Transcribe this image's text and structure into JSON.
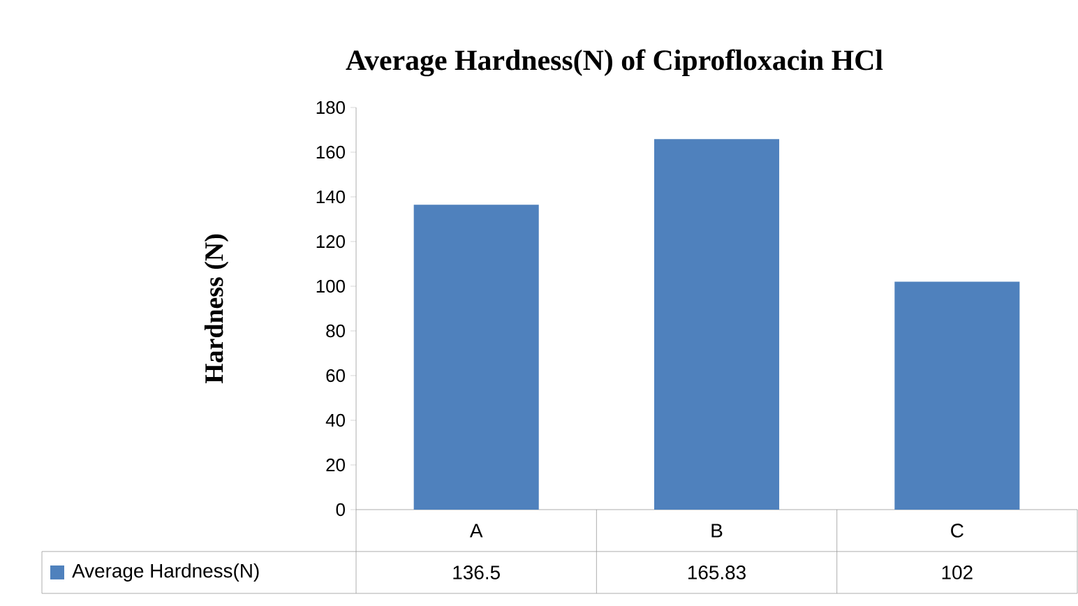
{
  "chart_data": {
    "type": "bar",
    "title": "Average  Hardness(N)  of Ciprofloxacin  HCl",
    "ylabel": "Hardness (N)",
    "categories": [
      "A",
      "B",
      "C"
    ],
    "series": [
      {
        "name": "Average Hardness(N)",
        "color": "#4f81bd",
        "values": [
          136.5,
          165.83,
          102
        ],
        "value_labels": [
          "136.5",
          "165.83",
          "102"
        ]
      }
    ],
    "ylim": [
      0,
      180
    ],
    "yticks": [
      0,
      20,
      40,
      60,
      80,
      100,
      120,
      140,
      160,
      180
    ],
    "legend": "bottom"
  }
}
